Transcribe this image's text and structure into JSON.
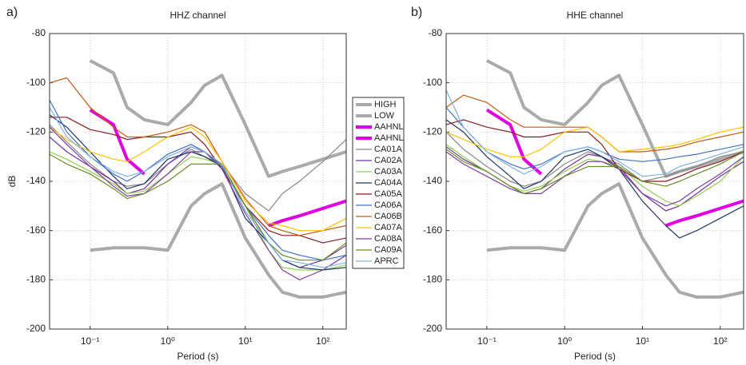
{
  "chart_data": [
    {
      "type": "line",
      "panel_label": "a)",
      "title": "HHZ channel",
      "xlabel": "Period (s)",
      "ylabel": "dB",
      "xscale": "log",
      "grid": true,
      "legend": "outside right",
      "xlim": [
        0.03,
        200
      ],
      "ylim": [
        -200,
        -80
      ],
      "xticks": [
        {
          "value": 0.1,
          "label": "10⁻¹"
        },
        {
          "value": 1,
          "label": "10⁰"
        },
        {
          "value": 10,
          "label": "10¹"
        },
        {
          "value": 100,
          "label": "10²"
        }
      ],
      "yticks": [
        -200,
        -180,
        -160,
        -140,
        -120,
        -100,
        -80
      ],
      "x": [
        0.03,
        0.05,
        0.1,
        0.2,
        0.3,
        0.5,
        1,
        2,
        3,
        5,
        10,
        20,
        30,
        50,
        100,
        200
      ],
      "series": [
        {
          "name": "HIGH",
          "color": "#aaaaaa",
          "linewidth": 4,
          "values": [
            null,
            null,
            -91,
            -96,
            -110,
            -115,
            -117,
            -108,
            -101,
            -97,
            -117,
            -138,
            -136,
            -134,
            -131,
            -128
          ]
        },
        {
          "name": "LOW",
          "color": "#aaaaaa",
          "linewidth": 4,
          "values": [
            null,
            null,
            -168,
            -167,
            -167,
            -167,
            -168,
            -150,
            -145,
            -141,
            -163,
            -178,
            -185,
            -187,
            -187,
            -185
          ]
        },
        {
          "name": "AAHNL",
          "color": "#e000e0",
          "linewidth": 4,
          "values": [
            null,
            null,
            -111,
            -117,
            -131,
            -137,
            null,
            null,
            null,
            null,
            null,
            null,
            null,
            null,
            null,
            null
          ]
        },
        {
          "name": "AAHNL",
          "color": "#e000e0",
          "linewidth": 4,
          "values": [
            null,
            null,
            null,
            null,
            null,
            null,
            null,
            null,
            null,
            null,
            null,
            -158,
            -156,
            -154,
            -151,
            -148
          ]
        },
        {
          "name": "CA01A",
          "color": "#888888",
          "linewidth": 1.2,
          "values": [
            -117,
            -124,
            -133,
            -140,
            -142,
            -141,
            -133,
            -127,
            -130,
            -133,
            -145,
            -152,
            -145,
            -140,
            -132,
            -123
          ]
        },
        {
          "name": "CA02A",
          "color": "#7030a0",
          "linewidth": 1.2,
          "values": [
            -122,
            -128,
            -134,
            -140,
            -145,
            -143,
            -133,
            -126,
            -128,
            -133,
            -150,
            -165,
            -172,
            -175,
            -172,
            -166
          ]
        },
        {
          "name": "CA03A",
          "color": "#92d050",
          "linewidth": 1.2,
          "values": [
            -128,
            -131,
            -136,
            -141,
            -145,
            -144,
            -137,
            -130,
            -131,
            -133,
            -150,
            -168,
            -175,
            -176,
            -176,
            -174
          ]
        },
        {
          "name": "CA04A",
          "color": "#1f3864",
          "linewidth": 1.2,
          "values": [
            -113,
            -118,
            -128,
            -138,
            -143,
            -141,
            -131,
            -128,
            -130,
            -134,
            -155,
            -165,
            -172,
            -175,
            -176,
            -175
          ]
        },
        {
          "name": "CA05A",
          "color": "#8b1a1a",
          "linewidth": 1.2,
          "values": [
            -114,
            -114,
            -119,
            -121,
            -123,
            -122,
            -122,
            -120,
            -125,
            -135,
            -150,
            -160,
            -162,
            -162,
            -165,
            -163
          ]
        },
        {
          "name": "CA06A",
          "color": "#4472c4",
          "linewidth": 1.2,
          "values": [
            -107,
            -120,
            -130,
            -137,
            -140,
            -136,
            -129,
            -125,
            -128,
            -134,
            -150,
            -162,
            -168,
            -170,
            -172,
            -170
          ]
        },
        {
          "name": "CA06B",
          "color": "#c55a11",
          "linewidth": 1.2,
          "values": [
            -100,
            -98,
            -110,
            -118,
            -122,
            -122,
            -120,
            -117,
            -120,
            -132,
            -147,
            -158,
            -160,
            -162,
            -160,
            -158
          ]
        },
        {
          "name": "CA07A",
          "color": "#ffc000",
          "linewidth": 1.2,
          "values": [
            -118,
            -123,
            -128,
            -131,
            -132,
            -128,
            -122,
            -118,
            -122,
            -132,
            -148,
            -157,
            -158,
            -160,
            -160,
            -155
          ]
        },
        {
          "name": "CA08A",
          "color": "#7b3f9e",
          "linewidth": 1.2,
          "values": [
            -118,
            -125,
            -134,
            -142,
            -146,
            -145,
            -137,
            -128,
            -128,
            -135,
            -153,
            -168,
            -176,
            -180,
            -176,
            -170
          ]
        },
        {
          "name": "CA09A",
          "color": "#6b8e23",
          "linewidth": 1.2,
          "values": [
            -129,
            -133,
            -137,
            -143,
            -147,
            -145,
            -140,
            -133,
            -133,
            -133,
            -150,
            -165,
            -170,
            -172,
            -172,
            -165
          ]
        },
        {
          "name": "APRC",
          "color": "#7fb2e0",
          "linewidth": 1.2,
          "values": [
            -110,
            -122,
            -130,
            -136,
            -138,
            -136,
            -130,
            -126,
            -128,
            -133,
            -152,
            -165,
            -172,
            -173,
            -175,
            -173
          ]
        }
      ]
    },
    {
      "type": "line",
      "panel_label": "b)",
      "title": "HHE channel",
      "xlabel": "Period (s)",
      "xscale": "log",
      "grid": true,
      "xlim": [
        0.03,
        200
      ],
      "ylim": [
        -200,
        -80
      ],
      "xticks": [
        {
          "value": 0.1,
          "label": "10⁻¹"
        },
        {
          "value": 1,
          "label": "10⁰"
        },
        {
          "value": 10,
          "label": "10¹"
        },
        {
          "value": 100,
          "label": "10²"
        }
      ],
      "yticks": [
        -200,
        -180,
        -160,
        -140,
        -120,
        -100,
        -80
      ],
      "x": [
        0.03,
        0.05,
        0.1,
        0.2,
        0.3,
        0.5,
        1,
        2,
        3,
        5,
        10,
        20,
        30,
        50,
        100,
        200
      ],
      "series": [
        {
          "name": "HIGH",
          "color": "#aaaaaa",
          "linewidth": 4,
          "values": [
            null,
            null,
            -91,
            -96,
            -110,
            -115,
            -117,
            -108,
            -101,
            -97,
            -117,
            -138,
            -136,
            -134,
            -131,
            -128
          ]
        },
        {
          "name": "LOW",
          "color": "#aaaaaa",
          "linewidth": 4,
          "values": [
            null,
            null,
            -168,
            -167,
            -167,
            -167,
            -168,
            -150,
            -145,
            -141,
            -163,
            -178,
            -185,
            -187,
            -187,
            -185
          ]
        },
        {
          "name": "AAHNL",
          "color": "#e000e0",
          "linewidth": 4,
          "values": [
            null,
            null,
            -111,
            -117,
            -131,
            -137,
            null,
            null,
            null,
            null,
            null,
            null,
            null,
            null,
            null,
            null
          ]
        },
        {
          "name": "AAHNL",
          "color": "#e000e0",
          "linewidth": 4,
          "values": [
            null,
            null,
            null,
            null,
            null,
            null,
            null,
            null,
            null,
            null,
            null,
            -158,
            -156,
            -154,
            -151,
            -148
          ]
        },
        {
          "name": "CA01A",
          "color": "#888888",
          "linewidth": 1.2,
          "values": [
            -120,
            -127,
            -134,
            -140,
            -142,
            -140,
            -133,
            -128,
            -130,
            -133,
            -140,
            -138,
            -136,
            -134,
            -130,
            -128
          ]
        },
        {
          "name": "CA02A",
          "color": "#7030a0",
          "linewidth": 1.2,
          "values": [
            -126,
            -131,
            -136,
            -142,
            -145,
            -143,
            -135,
            -129,
            -130,
            -134,
            -145,
            -152,
            -150,
            -145,
            -138,
            -132
          ]
        },
        {
          "name": "CA03A",
          "color": "#92d050",
          "linewidth": 1.2,
          "values": [
            -125,
            -130,
            -136,
            -142,
            -144,
            -142,
            -136,
            -131,
            -132,
            -134,
            -142,
            -148,
            -150,
            -146,
            -140,
            -130
          ]
        },
        {
          "name": "CA04A",
          "color": "#1f3864",
          "linewidth": 1.2,
          "values": [
            -115,
            -120,
            -130,
            -138,
            -143,
            -140,
            -130,
            -127,
            -130,
            -135,
            -148,
            -158,
            -163,
            -160,
            -155,
            -150
          ]
        },
        {
          "name": "CA05A",
          "color": "#8b1a1a",
          "linewidth": 1.2,
          "values": [
            -117,
            -115,
            -118,
            -120,
            -122,
            -122,
            -120,
            -120,
            -125,
            -135,
            -140,
            -140,
            -138,
            -135,
            -132,
            -128
          ]
        },
        {
          "name": "CA06A",
          "color": "#4472c4",
          "linewidth": 1.2,
          "values": [
            -110,
            -118,
            -128,
            -133,
            -135,
            -133,
            -128,
            -126,
            -128,
            -131,
            -132,
            -131,
            -130,
            -129,
            -127,
            -125
          ]
        },
        {
          "name": "CA06B",
          "color": "#c55a11",
          "linewidth": 1.2,
          "values": [
            -110,
            -105,
            -108,
            -115,
            -118,
            -118,
            -118,
            -118,
            -122,
            -128,
            -128,
            -127,
            -126,
            -124,
            -122,
            -120
          ]
        },
        {
          "name": "CA07A",
          "color": "#ffc000",
          "linewidth": 1.2,
          "values": [
            -120,
            -123,
            -127,
            -130,
            -130,
            -127,
            -120,
            -118,
            -122,
            -128,
            -127,
            -126,
            -125,
            -123,
            -120,
            -118
          ]
        },
        {
          "name": "CA08A",
          "color": "#7b3f9e",
          "linewidth": 1.2,
          "values": [
            -128,
            -133,
            -138,
            -143,
            -145,
            -145,
            -138,
            -132,
            -132,
            -135,
            -145,
            -150,
            -148,
            -143,
            -137,
            -130
          ]
        },
        {
          "name": "CA09A",
          "color": "#6b8e23",
          "linewidth": 1.2,
          "values": [
            -127,
            -132,
            -136,
            -142,
            -145,
            -143,
            -138,
            -134,
            -134,
            -134,
            -140,
            -142,
            -140,
            -137,
            -133,
            -128
          ]
        },
        {
          "name": "APRC",
          "color": "#7fb2e0",
          "linewidth": 1.2,
          "values": [
            -103,
            -118,
            -128,
            -134,
            -137,
            -134,
            -128,
            -126,
            -128,
            -132,
            -138,
            -137,
            -134,
            -132,
            -129,
            -126
          ]
        }
      ]
    }
  ]
}
